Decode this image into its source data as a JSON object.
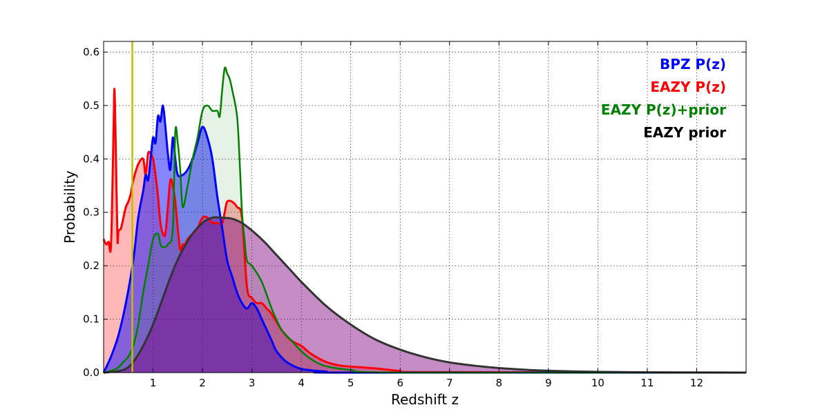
{
  "chart_data": {
    "type": "area",
    "title": "",
    "xlabel": "Redshift z",
    "ylabel": "Probability",
    "xlim": [
      0,
      13
    ],
    "ylim": [
      0,
      0.62
    ],
    "grid": true,
    "legend_placement": "top-right",
    "x_ticks": [
      1,
      2,
      3,
      4,
      5,
      6,
      7,
      8,
      9,
      10,
      11,
      12
    ],
    "y_ticks": [
      0.0,
      0.1,
      0.2,
      0.3,
      0.4,
      0.5,
      0.6
    ],
    "x_tick_labels": [
      "1",
      "2",
      "3",
      "4",
      "5",
      "6",
      "7",
      "8",
      "9",
      "10",
      "11",
      "12"
    ],
    "y_tick_labels": [
      "0.0",
      "0.1",
      "0.2",
      "0.3",
      "0.4",
      "0.5",
      "0.6"
    ],
    "vertical_line": {
      "x": 0.58,
      "color": "#bfbf00"
    },
    "series": [
      {
        "name": "BPZ P(z)",
        "color": "#0000ff",
        "fill": "#0000ff",
        "fill_opacity": 0.48,
        "line_width": 3,
        "x": [
          0,
          0.15,
          0.3,
          0.45,
          0.6,
          0.7,
          0.8,
          0.85,
          0.9,
          0.95,
          1.0,
          1.05,
          1.1,
          1.15,
          1.2,
          1.25,
          1.3,
          1.35,
          1.4,
          1.45,
          1.5,
          1.6,
          1.7,
          1.8,
          1.9,
          2.0,
          2.1,
          2.2,
          2.3,
          2.4,
          2.5,
          2.6,
          2.7,
          2.8,
          2.9,
          3.0,
          3.1,
          3.2,
          3.3,
          3.4,
          3.5,
          3.7,
          4.0,
          4.5,
          5.0,
          13
        ],
        "y": [
          0.0,
          0.03,
          0.07,
          0.13,
          0.21,
          0.29,
          0.34,
          0.37,
          0.36,
          0.4,
          0.44,
          0.43,
          0.48,
          0.47,
          0.5,
          0.46,
          0.41,
          0.38,
          0.44,
          0.4,
          0.37,
          0.37,
          0.38,
          0.4,
          0.43,
          0.46,
          0.44,
          0.4,
          0.33,
          0.27,
          0.21,
          0.18,
          0.15,
          0.13,
          0.12,
          0.13,
          0.12,
          0.1,
          0.08,
          0.06,
          0.04,
          0.02,
          0.007,
          0.002,
          0.0,
          0.0
        ]
      },
      {
        "name": "EAZY P(z)",
        "color": "#ff0000",
        "fill": "#ff0000",
        "fill_opacity": 0.28,
        "line_width": 3,
        "x": [
          0,
          0.05,
          0.1,
          0.15,
          0.2,
          0.22,
          0.25,
          0.28,
          0.3,
          0.35,
          0.4,
          0.45,
          0.5,
          0.55,
          0.6,
          0.7,
          0.8,
          0.85,
          0.9,
          0.95,
          1.0,
          1.05,
          1.1,
          1.15,
          1.2,
          1.25,
          1.3,
          1.35,
          1.4,
          1.45,
          1.5,
          1.55,
          1.6,
          1.65,
          1.7,
          1.8,
          1.9,
          2.0,
          2.1,
          2.2,
          2.3,
          2.4,
          2.45,
          2.5,
          2.6,
          2.7,
          2.8,
          2.9,
          3.0,
          3.1,
          3.2,
          3.3,
          3.4,
          3.6,
          3.8,
          4.0,
          4.2,
          4.5,
          4.8,
          5.2,
          5.6,
          6.0,
          6.5,
          13
        ],
        "y": [
          0.25,
          0.24,
          0.245,
          0.24,
          0.45,
          0.53,
          0.4,
          0.25,
          0.265,
          0.27,
          0.29,
          0.31,
          0.32,
          0.335,
          0.36,
          0.39,
          0.4,
          0.37,
          0.41,
          0.41,
          0.4,
          0.37,
          0.33,
          0.28,
          0.26,
          0.26,
          0.31,
          0.36,
          0.35,
          0.32,
          0.27,
          0.23,
          0.24,
          0.24,
          0.25,
          0.26,
          0.27,
          0.29,
          0.29,
          0.28,
          0.28,
          0.28,
          0.3,
          0.32,
          0.32,
          0.31,
          0.29,
          0.16,
          0.14,
          0.13,
          0.13,
          0.12,
          0.11,
          0.08,
          0.06,
          0.05,
          0.035,
          0.02,
          0.013,
          0.01,
          0.007,
          0.003,
          0.001,
          0.0
        ]
      },
      {
        "name": "EAZY P(z)+prior",
        "color": "#008000",
        "fill": "#008000",
        "fill_opacity": 0.1,
        "line_width": 2.5,
        "x": [
          0,
          0.2,
          0.3,
          0.4,
          0.5,
          0.6,
          0.7,
          0.8,
          0.9,
          1.0,
          1.1,
          1.15,
          1.2,
          1.3,
          1.4,
          1.45,
          1.5,
          1.55,
          1.6,
          1.7,
          1.8,
          1.9,
          2.0,
          2.1,
          2.2,
          2.3,
          2.35,
          2.4,
          2.45,
          2.5,
          2.55,
          2.6,
          2.7,
          2.75,
          2.8,
          2.85,
          2.9,
          3.0,
          3.2,
          3.4,
          3.6,
          3.8,
          4.0,
          4.2,
          4.4,
          4.6,
          5.0,
          6.0,
          13
        ],
        "y": [
          0.0,
          0.005,
          0.01,
          0.02,
          0.03,
          0.05,
          0.09,
          0.15,
          0.2,
          0.25,
          0.26,
          0.24,
          0.235,
          0.24,
          0.27,
          0.45,
          0.43,
          0.38,
          0.31,
          0.35,
          0.4,
          0.44,
          0.49,
          0.5,
          0.49,
          0.49,
          0.48,
          0.53,
          0.57,
          0.56,
          0.55,
          0.53,
          0.48,
          0.4,
          0.3,
          0.25,
          0.21,
          0.2,
          0.17,
          0.12,
          0.08,
          0.06,
          0.04,
          0.025,
          0.015,
          0.01,
          0.005,
          0.0,
          0.0
        ]
      },
      {
        "name": "EAZY prior",
        "color": "#333333",
        "fill": "#800080",
        "fill_opacity": 0.45,
        "line_width": 3,
        "x": [
          0,
          0.4,
          0.6,
          0.8,
          1.0,
          1.2,
          1.4,
          1.6,
          1.8,
          2.0,
          2.2,
          2.4,
          2.6,
          2.8,
          3.0,
          3.25,
          3.5,
          3.75,
          4.0,
          4.5,
          5.0,
          5.5,
          6.0,
          6.5,
          7.0,
          7.5,
          8.0,
          8.5,
          9.0,
          9.5,
          10.0,
          11.0,
          12.0,
          13.0
        ],
        "y": [
          0.0,
          0.005,
          0.02,
          0.05,
          0.09,
          0.14,
          0.19,
          0.23,
          0.26,
          0.28,
          0.29,
          0.29,
          0.288,
          0.28,
          0.266,
          0.245,
          0.22,
          0.195,
          0.17,
          0.125,
          0.09,
          0.062,
          0.043,
          0.029,
          0.019,
          0.013,
          0.0085,
          0.0055,
          0.0035,
          0.0022,
          0.0014,
          0.0005,
          0.0002,
          0.0
        ]
      }
    ]
  }
}
